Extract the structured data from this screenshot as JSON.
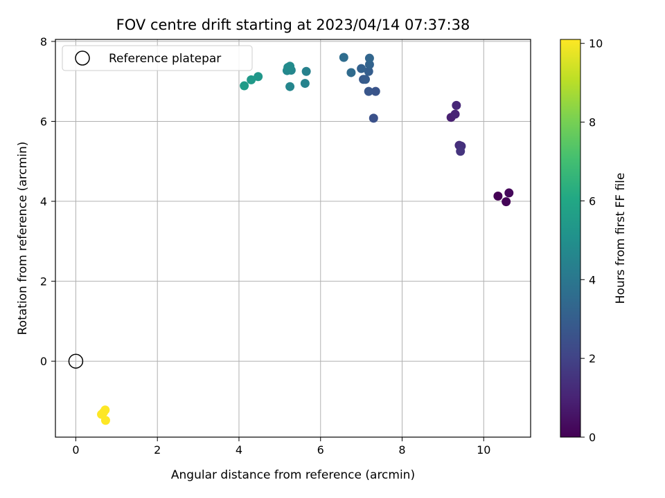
{
  "chart_data": {
    "type": "scatter",
    "title": "FOV centre drift starting at 2023/04/14 07:37:38",
    "xlabel": "Angular distance from reference (arcmin)",
    "ylabel": "Rotation from reference (arcmin)",
    "xlim": [
      -0.5,
      11.15
    ],
    "ylim": [
      -1.9,
      8.05
    ],
    "xticks": [
      0,
      2,
      4,
      6,
      8,
      10
    ],
    "yticks": [
      0,
      2,
      4,
      6,
      8
    ],
    "grid": true,
    "legend": {
      "placement": "top-left",
      "label": "Reference platepar"
    },
    "reference_point": {
      "x": 0,
      "y": 0
    },
    "colorbar": {
      "label": "Hours from first FF file",
      "colormap": "viridis",
      "range": [
        0,
        10.1
      ],
      "ticks": [
        0,
        2,
        4,
        6,
        8,
        10
      ]
    },
    "series": [
      {
        "points": [
          {
            "x": 10.35,
            "y": 4.13,
            "hours": 0.0
          },
          {
            "x": 10.55,
            "y": 3.99,
            "hours": 0.1
          },
          {
            "x": 10.62,
            "y": 4.21,
            "hours": 0.2
          },
          {
            "x": 9.2,
            "y": 6.1,
            "hours": 0.9
          },
          {
            "x": 9.3,
            "y": 6.18,
            "hours": 1.0
          },
          {
            "x": 9.33,
            "y": 6.4,
            "hours": 1.1
          },
          {
            "x": 9.4,
            "y": 5.4,
            "hours": 1.3
          },
          {
            "x": 9.45,
            "y": 5.38,
            "hours": 1.4
          },
          {
            "x": 9.43,
            "y": 5.25,
            "hours": 1.5
          },
          {
            "x": 7.3,
            "y": 6.08,
            "hours": 2.5
          },
          {
            "x": 7.35,
            "y": 6.75,
            "hours": 2.6
          },
          {
            "x": 7.18,
            "y": 6.75,
            "hours": 2.7
          },
          {
            "x": 7.05,
            "y": 7.05,
            "hours": 2.8
          },
          {
            "x": 7.1,
            "y": 7.05,
            "hours": 2.9
          },
          {
            "x": 7.18,
            "y": 7.25,
            "hours": 3.0
          },
          {
            "x": 7.0,
            "y": 7.32,
            "hours": 3.1
          },
          {
            "x": 7.2,
            "y": 7.42,
            "hours": 3.2
          },
          {
            "x": 7.2,
            "y": 7.58,
            "hours": 3.3
          },
          {
            "x": 6.75,
            "y": 7.22,
            "hours": 3.5
          },
          {
            "x": 6.57,
            "y": 7.6,
            "hours": 3.6
          },
          {
            "x": 5.65,
            "y": 7.25,
            "hours": 4.4
          },
          {
            "x": 5.62,
            "y": 6.95,
            "hours": 4.5
          },
          {
            "x": 5.25,
            "y": 6.87,
            "hours": 4.6
          },
          {
            "x": 5.28,
            "y": 7.28,
            "hours": 4.6
          },
          {
            "x": 5.18,
            "y": 7.27,
            "hours": 4.7
          },
          {
            "x": 5.2,
            "y": 7.35,
            "hours": 4.8
          },
          {
            "x": 5.25,
            "y": 7.38,
            "hours": 4.8
          },
          {
            "x": 4.47,
            "y": 7.12,
            "hours": 5.3
          },
          {
            "x": 4.3,
            "y": 7.04,
            "hours": 5.4
          },
          {
            "x": 4.13,
            "y": 6.89,
            "hours": 5.5
          },
          {
            "x": 0.68,
            "y": -1.28,
            "hours": 10.1
          },
          {
            "x": 0.72,
            "y": -1.22,
            "hours": 10.1
          },
          {
            "x": 0.63,
            "y": -1.33,
            "hours": 10.1
          },
          {
            "x": 0.73,
            "y": -1.48,
            "hours": 10.1
          }
        ]
      }
    ]
  }
}
